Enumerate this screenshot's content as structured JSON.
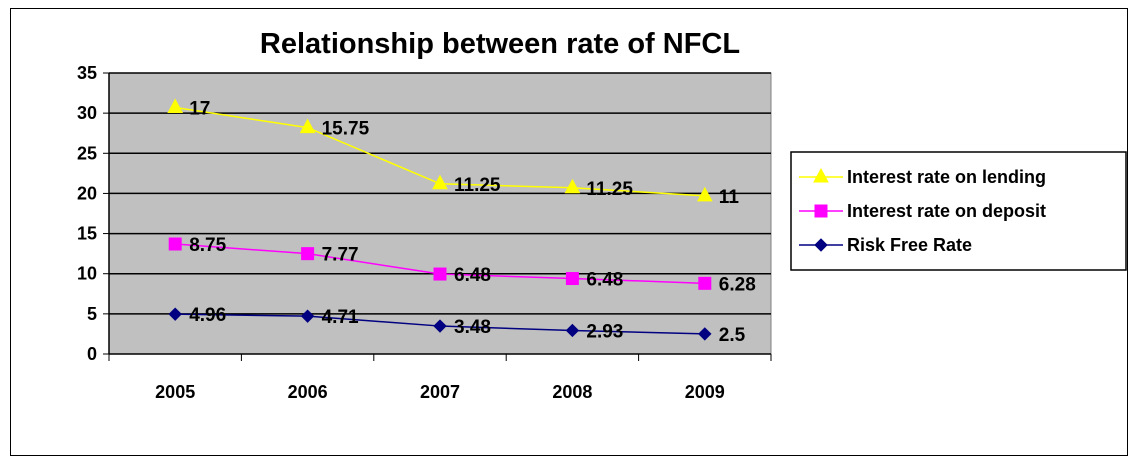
{
  "chart_data": {
    "type": "line",
    "title": "Relationship between rate of NFCL",
    "xlabel": "",
    "ylabel": "",
    "categories": [
      "2005",
      "2006",
      "2007",
      "2008",
      "2009"
    ],
    "ylim": [
      0,
      35
    ],
    "yticks": [
      0,
      5,
      10,
      15,
      20,
      25,
      30,
      35
    ],
    "grid": true,
    "legend_position": "right",
    "series": [
      {
        "name": "Interest rate on lending",
        "values": [
          30.7,
          28.2,
          21.2,
          20.7,
          19.7
        ],
        "labels": [
          "17",
          "15.75",
          "11.25",
          "11.25",
          "11"
        ],
        "color": "#ffff00",
        "marker": "triangle"
      },
      {
        "name": "Interest rate on deposit",
        "values": [
          13.7,
          12.5,
          9.96,
          9.4,
          8.8
        ],
        "labels": [
          "8.75",
          "7.77",
          "6.48",
          "6.48",
          "6.28"
        ],
        "color": "#ff00ff",
        "marker": "square"
      },
      {
        "name": "Risk Free Rate",
        "values": [
          4.96,
          4.71,
          3.48,
          2.93,
          2.5
        ],
        "labels": [
          "4.96",
          "4.71",
          "3.48",
          "2.93",
          "2.5"
        ],
        "color": "#000080",
        "marker": "diamond"
      }
    ],
    "plot_background": "#c0c0c0"
  }
}
